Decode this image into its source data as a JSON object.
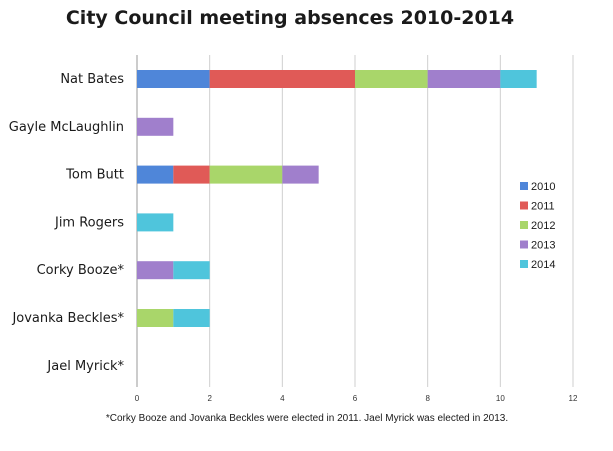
{
  "chart_data": {
    "type": "bar",
    "orientation": "horizontal",
    "stacked": true,
    "title": "City Council meeting absences 2010-2014",
    "xlabel": "",
    "ylabel": "",
    "xlim": [
      0,
      12
    ],
    "x_ticks": [
      0,
      2,
      4,
      6,
      8,
      10,
      12
    ],
    "grid": "vertical",
    "legend_position": "right",
    "categories": [
      "Nat Bates",
      "Gayle McLaughlin",
      "Tom Butt",
      "Jim Rogers",
      "Corky Booze*",
      "Jovanka Beckles*",
      "Jael Myrick*"
    ],
    "series": [
      {
        "name": "2010",
        "color": "#4f86d9",
        "values": [
          2,
          0,
          1,
          0,
          0,
          0,
          0
        ]
      },
      {
        "name": "2011",
        "color": "#e05a57",
        "values": [
          4,
          0,
          1,
          0,
          0,
          0,
          0
        ]
      },
      {
        "name": "2012",
        "color": "#a9d66a",
        "values": [
          2,
          0,
          2,
          0,
          0,
          1,
          0
        ]
      },
      {
        "name": "2013",
        "color": "#a07fcc",
        "values": [
          2,
          1,
          1,
          0,
          1,
          0,
          0
        ]
      },
      {
        "name": "2014",
        "color": "#4fc5dc",
        "values": [
          1,
          0,
          0,
          1,
          1,
          1,
          0
        ]
      }
    ],
    "footnote": "*Corky Booze and Jovanka Beckles were elected in 2011. Jael Myrick was elected in 2013."
  }
}
